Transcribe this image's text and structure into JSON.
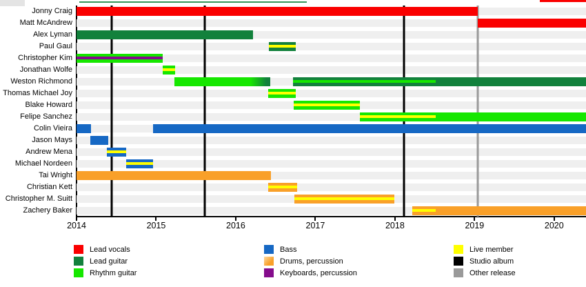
{
  "chart_data": {
    "type": "timeline",
    "description": "Band members timeline (Gantt-style) with studio album and release markers",
    "x_axis": {
      "min": 2014,
      "max": 2020.4,
      "ticks": [
        "2014",
        "2015",
        "2016",
        "2017",
        "2018",
        "2019",
        "2020"
      ],
      "tick_values": [
        2014,
        2015,
        2016,
        2017,
        2018,
        2019,
        2020
      ]
    },
    "members": [
      {
        "name": "Jonny Craig",
        "bars": [
          {
            "start": 2014.0,
            "end": 2019.04,
            "role": "lead_vocals"
          }
        ]
      },
      {
        "name": "Matt McAndrew",
        "bars": [
          {
            "start": 2019.04,
            "end": 2020.4,
            "role": "lead_vocals"
          }
        ]
      },
      {
        "name": "Alex Lyman",
        "bars": [
          {
            "start": 2014.0,
            "end": 2016.22,
            "role": "lead_guitar"
          }
        ]
      },
      {
        "name": "Paul Gaul",
        "bars": [
          {
            "start": 2016.42,
            "end": 2016.75,
            "role": "lead_guitar",
            "stripe": "live_member"
          }
        ]
      },
      {
        "name": "Christopher Kim",
        "bars": [
          {
            "start": 2014.0,
            "end": 2015.08,
            "role": "rhythm_guitar",
            "stripe": "keyboards"
          }
        ]
      },
      {
        "name": "Jonathan Wolfe",
        "bars": [
          {
            "start": 2015.08,
            "end": 2015.24,
            "role": "rhythm_guitar",
            "stripe": "live_member"
          }
        ]
      },
      {
        "name": "Weston Richmond",
        "bars": [
          {
            "start": 2015.23,
            "end": 2016.43,
            "role": "rhythm_guitar",
            "fade_to": "lead_guitar",
            "fade_from": 2016.18
          },
          {
            "start": 2016.72,
            "end": 2020.4,
            "role": "lead_guitar",
            "stripe": "rhythm_guitar",
            "stripe_end": 2018.51
          }
        ]
      },
      {
        "name": "Thomas Michael Joy",
        "bars": [
          {
            "start": 2016.41,
            "end": 2016.75,
            "role": "rhythm_guitar",
            "stripe": "live_member"
          }
        ]
      },
      {
        "name": "Blake Howard",
        "bars": [
          {
            "start": 2016.73,
            "end": 2017.56,
            "role": "rhythm_guitar",
            "stripe": "live_member"
          }
        ]
      },
      {
        "name": "Felipe Sanchez",
        "bars": [
          {
            "start": 2017.56,
            "end": 2020.4,
            "role": "rhythm_guitar",
            "stripe": "live_member",
            "stripe_end": 2018.51
          }
        ]
      },
      {
        "name": "Colin Vieira",
        "bars": [
          {
            "start": 2014.0,
            "end": 2014.18,
            "role": "bass"
          },
          {
            "start": 2014.96,
            "end": 2020.4,
            "role": "bass"
          }
        ]
      },
      {
        "name": "Jason Mays",
        "bars": [
          {
            "start": 2014.17,
            "end": 2014.4,
            "role": "bass"
          }
        ]
      },
      {
        "name": "Andrew Mena",
        "bars": [
          {
            "start": 2014.38,
            "end": 2014.62,
            "role": "bass",
            "stripe": "live_member"
          }
        ]
      },
      {
        "name": "Michael Nordeen",
        "bars": [
          {
            "start": 2014.62,
            "end": 2014.96,
            "role": "bass",
            "stripe": "live_member"
          }
        ]
      },
      {
        "name": "Tai Wright",
        "bars": [
          {
            "start": 2014.0,
            "end": 2016.44,
            "role": "drums"
          }
        ]
      },
      {
        "name": "Christian Kett",
        "bars": [
          {
            "start": 2016.41,
            "end": 2016.77,
            "role": "drums",
            "stripe": "live_member"
          }
        ]
      },
      {
        "name": "Christopher M. Suitt",
        "bars": [
          {
            "start": 2016.74,
            "end": 2017.99,
            "role": "drums",
            "stripe": "live_member"
          }
        ]
      },
      {
        "name": "Zachery Baker",
        "bars": [
          {
            "start": 2018.22,
            "end": 2020.4,
            "role": "drums",
            "stripe": "live_member",
            "stripe_end": 2018.51
          }
        ]
      }
    ],
    "markers": [
      {
        "x": 2014.44,
        "type": "studio_album"
      },
      {
        "x": 2015.61,
        "type": "studio_album"
      },
      {
        "x": 2018.11,
        "type": "studio_album"
      },
      {
        "x": 2019.04,
        "type": "other_release"
      }
    ]
  },
  "colors": {
    "lead_vocals": "#fa0000",
    "lead_guitar": "#12813c",
    "rhythm_guitar": "#16e700",
    "bass": "#1668c4",
    "drums": "#f9a029",
    "keyboards": "#850c8c",
    "live_member": "#ffff00",
    "studio_album": "#000000",
    "other_release": "#9a9a9a",
    "row_track": "#efefef"
  },
  "legend": {
    "columns": [
      {
        "items": [
          {
            "label": "Lead vocals",
            "color_key": "lead_vocals"
          },
          {
            "label": "Lead guitar",
            "color_key": "lead_guitar"
          },
          {
            "label": "Rhythm guitar",
            "color_key": "rhythm_guitar"
          }
        ]
      },
      {
        "items": [
          {
            "label": "Bass",
            "color_key": "bass"
          },
          {
            "label": "Drums, percussion",
            "color_key": "drums"
          },
          {
            "label": "Keyboards, percussion",
            "color_key": "keyboards"
          }
        ]
      },
      {
        "items": [
          {
            "label": "Live member",
            "color_key": "live_member"
          },
          {
            "label": "Studio album",
            "color_key": "studio_album"
          },
          {
            "label": "Other release",
            "color_key": "other_release"
          }
        ]
      }
    ]
  }
}
